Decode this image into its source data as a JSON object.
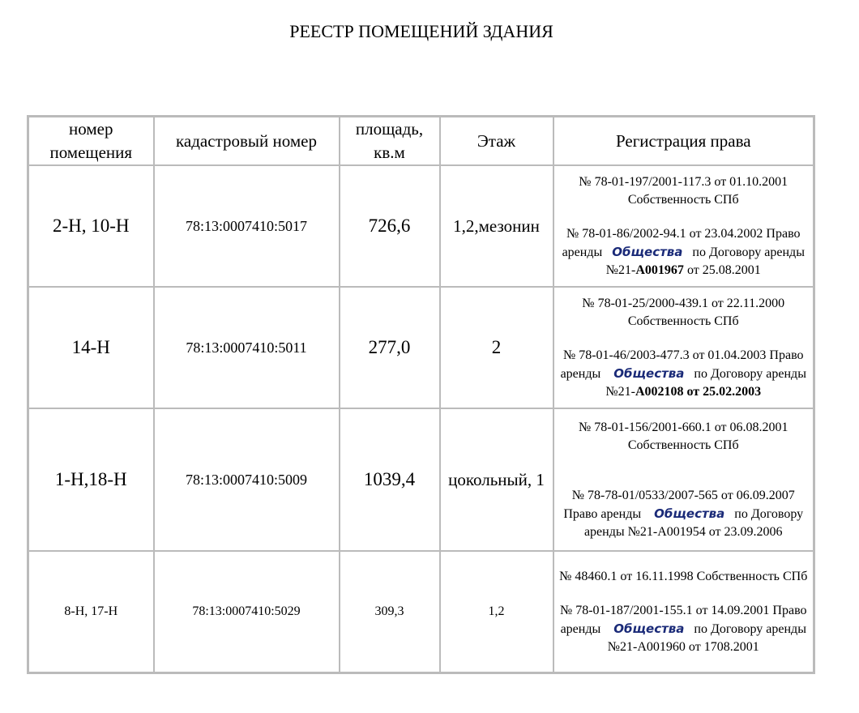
{
  "title": "РЕЕСТР ПОМЕЩЕНИЙ ЗДАНИЯ",
  "table": {
    "header": [
      "номер помещения",
      "кадастровый номер",
      "площадь, кв.м",
      "Этаж",
      "Регистрация права"
    ],
    "rows": [
      {
        "room": "2-Н, 10-Н",
        "cadastral": "78:13:0007410:5017",
        "area": "726,6",
        "floor": "1,2,мезонин",
        "registration": [
          "№ 78-01-197/2001-117.3  от 01.10.2001  Собственность СПб",
          "№ 78-01-86/2002-94.1  от 23.04.2002 Право аренды",
          "Общества",
          "по Договору аренды №21-",
          "А001967",
          "от 25.08.2001"
        ]
      },
      {
        "room": "14-Н",
        "cadastral": "78:13:0007410:5011",
        "area": "277,0",
        "floor": "2",
        "registration": [
          "№ 78-01-25/2000-439.1  от 22.11.2000 Собственность СПб",
          "№ 78-01-46/2003-477.3  от 01.04.2003  Право аренды",
          "Общества",
          "по Договору аренды №21-",
          "А002108 от 25.02.2003"
        ]
      },
      {
        "room": "1-Н,18-Н",
        "cadastral": "78:13:0007410:5009",
        "area": "1039,4",
        "floor": "цокольный, 1",
        "registration": [
          "№ 78-01-156/2001-660.1  от 06.08.2001  Собственность СПб",
          "№ 78-78-01/0533/2007-565  от 06.09.2007  Право аренды",
          "Общества",
          "по Договору аренды №21-А001954 от 23.09.2006"
        ]
      },
      {
        "room": "8-Н, 17-Н",
        "cadastral": "78:13:0007410:5029",
        "area": "309,3",
        "floor": "1,2",
        "registration": [
          "№ 48460.1  от 16.11.1998 Собственность СПб",
          "№ 78-01-187/2001-155.1  от 14.09.2001  Право аренды",
          "Общества",
          "по Договору аренды №21-А001960 от 1708.2001"
        ]
      }
    ]
  }
}
